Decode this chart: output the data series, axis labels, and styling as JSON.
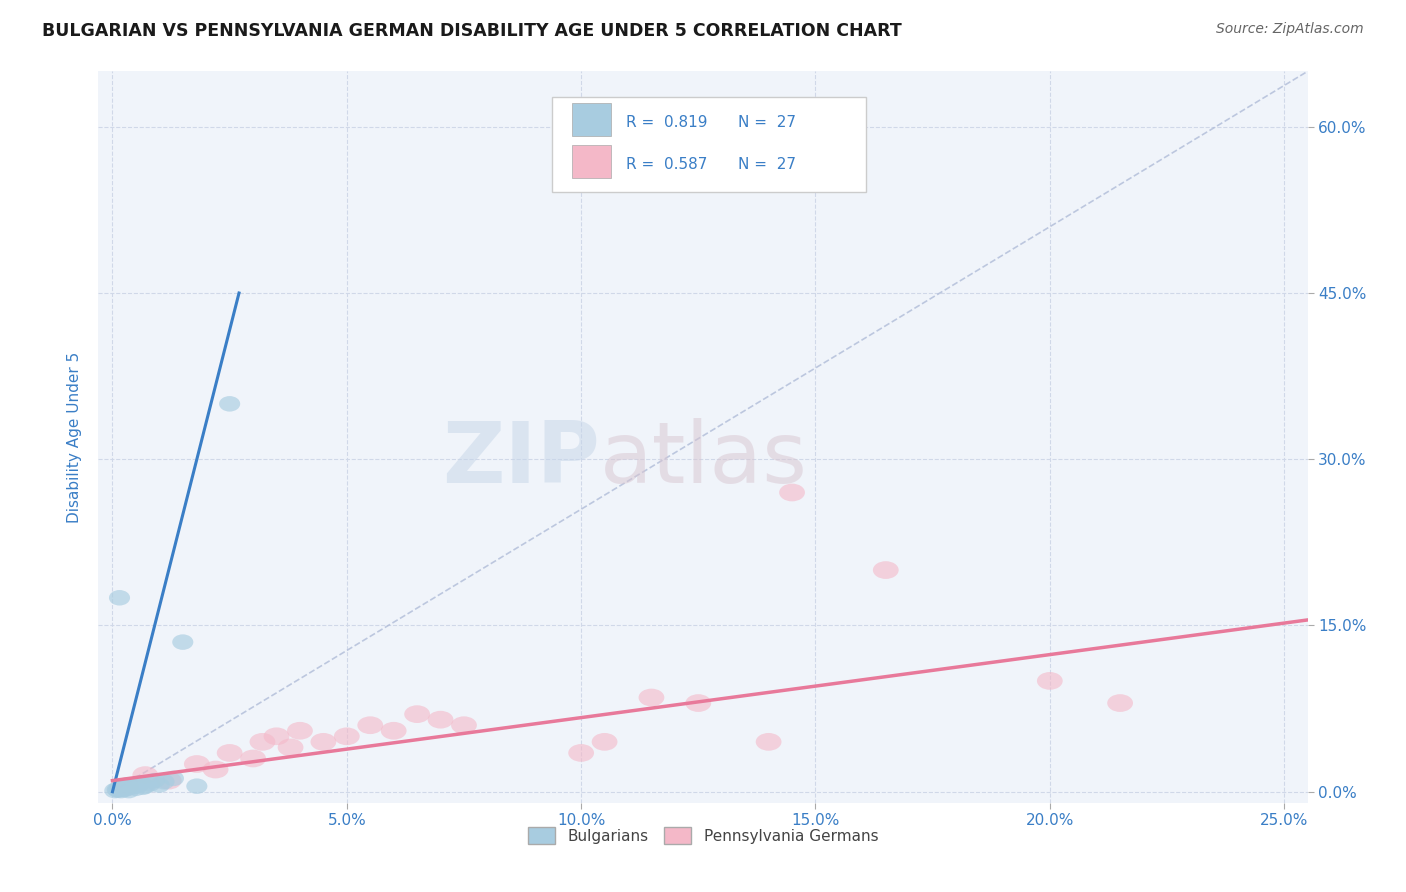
{
  "title": "BULGARIAN VS PENNSYLVANIA GERMAN DISABILITY AGE UNDER 5 CORRELATION CHART",
  "source": "Source: ZipAtlas.com",
  "xlabel_vals": [
    0.0,
    5.0,
    10.0,
    15.0,
    20.0,
    25.0
  ],
  "ylabel_vals": [
    0.0,
    15.0,
    30.0,
    45.0,
    60.0
  ],
  "xlim": [
    -0.3,
    25.5
  ],
  "ylim": [
    -1.0,
    65.0
  ],
  "ylabel": "Disability Age Under 5",
  "legend_r_blue": "0.819",
  "legend_n_blue": "27",
  "legend_r_pink": "0.587",
  "legend_n_pink": "27",
  "legend_label_blue": "Bulgarians",
  "legend_label_pink": "Pennsylvania Germans",
  "blue_color": "#a8cce0",
  "pink_color": "#f4b8c8",
  "blue_line_color": "#3a7ec6",
  "pink_line_color": "#e8799a",
  "blue_scatter": [
    [
      0.05,
      0.1
    ],
    [
      0.1,
      0.2
    ],
    [
      0.12,
      0.15
    ],
    [
      0.15,
      0.3
    ],
    [
      0.18,
      0.1
    ],
    [
      0.2,
      0.4
    ],
    [
      0.22,
      0.5
    ],
    [
      0.25,
      0.2
    ],
    [
      0.3,
      0.3
    ],
    [
      0.32,
      0.6
    ],
    [
      0.35,
      0.1
    ],
    [
      0.4,
      0.4
    ],
    [
      0.45,
      0.5
    ],
    [
      0.5,
      0.3
    ],
    [
      0.55,
      0.6
    ],
    [
      0.6,
      0.8
    ],
    [
      0.65,
      0.4
    ],
    [
      0.7,
      0.5
    ],
    [
      0.8,
      0.7
    ],
    [
      0.9,
      1.0
    ],
    [
      1.0,
      0.6
    ],
    [
      1.1,
      0.9
    ],
    [
      1.3,
      1.2
    ],
    [
      1.5,
      13.5
    ],
    [
      0.15,
      17.5
    ],
    [
      2.5,
      35.0
    ],
    [
      1.8,
      0.5
    ]
  ],
  "pink_scatter": [
    [
      0.3,
      0.5
    ],
    [
      0.7,
      1.5
    ],
    [
      1.2,
      1.0
    ],
    [
      1.8,
      2.5
    ],
    [
      2.2,
      2.0
    ],
    [
      2.5,
      3.5
    ],
    [
      3.0,
      3.0
    ],
    [
      3.2,
      4.5
    ],
    [
      3.5,
      5.0
    ],
    [
      3.8,
      4.0
    ],
    [
      4.0,
      5.5
    ],
    [
      4.5,
      4.5
    ],
    [
      5.0,
      5.0
    ],
    [
      5.5,
      6.0
    ],
    [
      6.0,
      5.5
    ],
    [
      6.5,
      7.0
    ],
    [
      7.0,
      6.5
    ],
    [
      7.5,
      6.0
    ],
    [
      10.0,
      3.5
    ],
    [
      10.5,
      4.5
    ],
    [
      11.5,
      8.5
    ],
    [
      12.5,
      8.0
    ],
    [
      14.5,
      27.0
    ],
    [
      16.5,
      20.0
    ],
    [
      20.0,
      10.0
    ],
    [
      21.5,
      8.0
    ],
    [
      14.0,
      4.5
    ]
  ],
  "blue_regline_x": [
    0.0,
    2.7
  ],
  "blue_regline_y": [
    0.0,
    45.0
  ],
  "pink_regline_x": [
    0.0,
    25.5
  ],
  "pink_regline_y": [
    1.0,
    15.5
  ],
  "diag_line_x": [
    0.0,
    25.5
  ],
  "diag_line_y": [
    0.0,
    65.0
  ],
  "watermark_zip": "ZIP",
  "watermark_atlas": "atlas",
  "title_color": "#1a1a1a",
  "source_color": "#666666",
  "axis_color": "#3a7ec6",
  "grid_color": "#d0d8e8",
  "background_color": "#ffffff",
  "plot_bg_color": "#f0f4fa"
}
